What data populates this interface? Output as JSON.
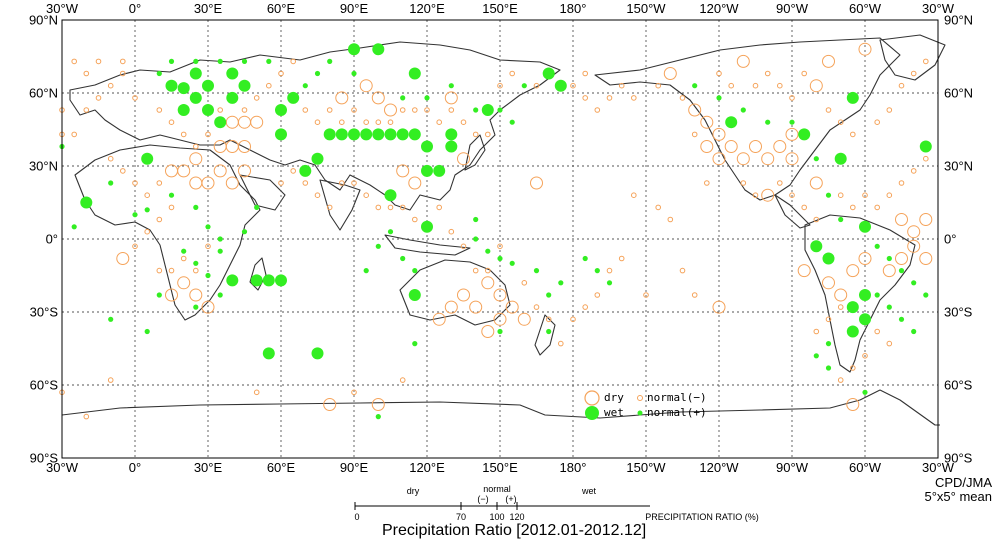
{
  "title": "Precipitation Ratio [2012.01-2012.12]",
  "credit": {
    "line1": "CPD/JMA",
    "line2": "5°x5° mean"
  },
  "colors": {
    "dry": "#f5a35a",
    "wet": "#33ee22",
    "land": "#333333",
    "grid": "#555555"
  },
  "longitude_labels": [
    "30°W",
    "0°",
    "30°E",
    "60°E",
    "90°E",
    "120°E",
    "150°E",
    "180°",
    "150°W",
    "120°W",
    "90°W",
    "60°W",
    "30°W"
  ],
  "latitude_labels": [
    "90°N",
    "60°N",
    "30°N",
    "0°",
    "30°S",
    "60°S",
    "90°S"
  ],
  "legend": {
    "dry": "dry",
    "wet": "wet",
    "normal_minus": "normal(−)",
    "normal_plus": "normal(+)"
  },
  "scale": {
    "dry": "dry",
    "normal": "normal",
    "minus": "(−)",
    "plus": "(+)",
    "wet": "wet",
    "ticks": [
      "0",
      "70",
      "100",
      "120"
    ],
    "label": "PRECIPITATION RATIO  (%)"
  },
  "stations": {
    "wet_large": [
      [
        -35,
        38
      ],
      [
        -20,
        15
      ],
      [
        5,
        33
      ],
      [
        15,
        63
      ],
      [
        20,
        62
      ],
      [
        20,
        53
      ],
      [
        25,
        68
      ],
      [
        25,
        58
      ],
      [
        30,
        63
      ],
      [
        30,
        53
      ],
      [
        35,
        48
      ],
      [
        40,
        58
      ],
      [
        45,
        63
      ],
      [
        40,
        68
      ],
      [
        60,
        43
      ],
      [
        60,
        53
      ],
      [
        65,
        58
      ],
      [
        70,
        28
      ],
      [
        75,
        33
      ],
      [
        80,
        43
      ],
      [
        85,
        43
      ],
      [
        90,
        43
      ],
      [
        95,
        43
      ],
      [
        100,
        43
      ],
      [
        105,
        43
      ],
      [
        110,
        43
      ],
      [
        115,
        43
      ],
      [
        120,
        38
      ],
      [
        90,
        78
      ],
      [
        100,
        78
      ],
      [
        115,
        68
      ],
      [
        120,
        28
      ],
      [
        125,
        28
      ],
      [
        130,
        43
      ],
      [
        130,
        38
      ],
      [
        145,
        53
      ],
      [
        170,
        68
      ],
      [
        175,
        63
      ],
      [
        50,
        -17
      ],
      [
        55,
        -17
      ],
      [
        60,
        -17
      ],
      [
        40,
        -17
      ],
      [
        115,
        -23
      ],
      [
        55,
        -47
      ],
      [
        75,
        -47
      ],
      [
        105,
        18
      ],
      [
        120,
        5
      ],
      [
        -60,
        5
      ],
      [
        -80,
        -3
      ],
      [
        -75,
        -8
      ],
      [
        -65,
        -38
      ],
      [
        -60,
        -33
      ],
      [
        -65,
        -28
      ],
      [
        -60,
        -23
      ],
      [
        -115,
        48
      ],
      [
        -70,
        33
      ],
      [
        -65,
        58
      ],
      [
        -85,
        43
      ]
    ],
    "wet_small": [
      [
        -25,
        5
      ],
      [
        -10,
        23
      ],
      [
        0,
        10
      ],
      [
        5,
        12
      ],
      [
        15,
        18
      ],
      [
        25,
        13
      ],
      [
        30,
        5
      ],
      [
        35,
        0
      ],
      [
        35,
        -5
      ],
      [
        45,
        3
      ],
      [
        50,
        13
      ],
      [
        20,
        -5
      ],
      [
        25,
        -10
      ],
      [
        30,
        -15
      ],
      [
        35,
        -23
      ],
      [
        25,
        -28
      ],
      [
        10,
        68
      ],
      [
        15,
        73
      ],
      [
        25,
        73
      ],
      [
        35,
        73
      ],
      [
        45,
        73
      ],
      [
        55,
        73
      ],
      [
        70,
        63
      ],
      [
        75,
        68
      ],
      [
        80,
        73
      ],
      [
        90,
        68
      ],
      [
        110,
        58
      ],
      [
        120,
        58
      ],
      [
        130,
        63
      ],
      [
        140,
        53
      ],
      [
        150,
        53
      ],
      [
        160,
        63
      ],
      [
        155,
        48
      ],
      [
        140,
        8
      ],
      [
        140,
        0
      ],
      [
        145,
        -5
      ],
      [
        150,
        -8
      ],
      [
        155,
        -10
      ],
      [
        165,
        -13
      ],
      [
        175,
        -18
      ],
      [
        170,
        -23
      ],
      [
        -175,
        -8
      ],
      [
        -170,
        -13
      ],
      [
        -165,
        -18
      ],
      [
        115,
        -43
      ],
      [
        150,
        -38
      ],
      [
        170,
        -38
      ],
      [
        95,
        -13
      ],
      [
        100,
        -3
      ],
      [
        105,
        3
      ],
      [
        110,
        -8
      ],
      [
        115,
        -13
      ],
      [
        -130,
        63
      ],
      [
        -120,
        58
      ],
      [
        -110,
        53
      ],
      [
        -100,
        48
      ],
      [
        -90,
        48
      ],
      [
        -80,
        33
      ],
      [
        -75,
        18
      ],
      [
        -70,
        8
      ],
      [
        -55,
        -3
      ],
      [
        -50,
        -8
      ],
      [
        -45,
        -13
      ],
      [
        -40,
        -18
      ],
      [
        -55,
        -23
      ],
      [
        -50,
        -28
      ],
      [
        -45,
        -33
      ],
      [
        -40,
        -38
      ],
      [
        -75,
        -43
      ],
      [
        -80,
        -48
      ],
      [
        -75,
        -53
      ],
      [
        -60,
        -63
      ],
      [
        -30,
        38
      ],
      [
        100,
        -73
      ],
      [
        -35,
        -23
      ],
      [
        10,
        -23
      ],
      [
        -10,
        -33
      ],
      [
        5,
        -38
      ]
    ],
    "dry_large": [
      [
        15,
        28
      ],
      [
        20,
        28
      ],
      [
        25,
        23
      ],
      [
        30,
        23
      ],
      [
        35,
        28
      ],
      [
        40,
        23
      ],
      [
        45,
        28
      ],
      [
        25,
        33
      ],
      [
        35,
        38
      ],
      [
        40,
        38
      ],
      [
        45,
        38
      ],
      [
        40,
        48
      ],
      [
        45,
        48
      ],
      [
        50,
        48
      ],
      [
        85,
        58
      ],
      [
        95,
        63
      ],
      [
        100,
        58
      ],
      [
        105,
        53
      ],
      [
        130,
        58
      ],
      [
        135,
        33
      ],
      [
        110,
        28
      ],
      [
        115,
        23
      ],
      [
        -125,
        38
      ],
      [
        -120,
        33
      ],
      [
        -115,
        38
      ],
      [
        -110,
        33
      ],
      [
        -105,
        38
      ],
      [
        -100,
        33
      ],
      [
        -95,
        38
      ],
      [
        -90,
        43
      ],
      [
        -90,
        33
      ],
      [
        -80,
        23
      ],
      [
        -100,
        18
      ],
      [
        -130,
        53
      ],
      [
        -125,
        48
      ],
      [
        -120,
        43
      ],
      [
        -140,
        68
      ],
      [
        -110,
        73
      ],
      [
        -80,
        63
      ],
      [
        -75,
        73
      ],
      [
        -60,
        78
      ],
      [
        150,
        -23
      ],
      [
        140,
        -28
      ],
      [
        145,
        -18
      ],
      [
        135,
        -23
      ],
      [
        130,
        -28
      ],
      [
        125,
        -33
      ],
      [
        155,
        -28
      ],
      [
        160,
        -33
      ],
      [
        150,
        -33
      ],
      [
        145,
        -38
      ],
      [
        165,
        23
      ],
      [
        -40,
        -3
      ],
      [
        -40,
        3
      ],
      [
        -45,
        8
      ],
      [
        -45,
        -8
      ],
      [
        -50,
        -13
      ],
      [
        -35,
        -8
      ],
      [
        -120,
        -28
      ],
      [
        -65,
        -68
      ],
      [
        -35,
        8
      ],
      [
        -75,
        -18
      ],
      [
        -70,
        -23
      ],
      [
        -65,
        -13
      ],
      [
        -60,
        -8
      ],
      [
        -85,
        -13
      ],
      [
        15,
        -23
      ],
      [
        20,
        -18
      ],
      [
        25,
        -23
      ],
      [
        30,
        -28
      ],
      [
        -5,
        -8
      ],
      [
        80,
        -68
      ],
      [
        100,
        -68
      ]
    ],
    "dry_small": [
      [
        -25,
        43
      ],
      [
        -20,
        53
      ],
      [
        -15,
        58
      ],
      [
        -10,
        63
      ],
      [
        -5,
        68
      ],
      [
        0,
        58
      ],
      [
        10,
        53
      ],
      [
        15,
        48
      ],
      [
        20,
        43
      ],
      [
        25,
        38
      ],
      [
        30,
        43
      ],
      [
        35,
        53
      ],
      [
        45,
        53
      ],
      [
        50,
        58
      ],
      [
        55,
        63
      ],
      [
        60,
        68
      ],
      [
        65,
        73
      ],
      [
        70,
        53
      ],
      [
        75,
        48
      ],
      [
        80,
        53
      ],
      [
        85,
        48
      ],
      [
        90,
        53
      ],
      [
        95,
        48
      ],
      [
        100,
        48
      ],
      [
        105,
        48
      ],
      [
        110,
        53
      ],
      [
        115,
        53
      ],
      [
        120,
        53
      ],
      [
        125,
        48
      ],
      [
        130,
        53
      ],
      [
        135,
        48
      ],
      [
        140,
        43
      ],
      [
        145,
        43
      ],
      [
        150,
        63
      ],
      [
        155,
        68
      ],
      [
        165,
        63
      ],
      [
        180,
        63
      ],
      [
        185,
        68
      ],
      [
        -10,
        33
      ],
      [
        -5,
        28
      ],
      [
        0,
        23
      ],
      [
        5,
        18
      ],
      [
        10,
        23
      ],
      [
        15,
        13
      ],
      [
        10,
        8
      ],
      [
        5,
        3
      ],
      [
        0,
        -3
      ],
      [
        10,
        -13
      ],
      [
        15,
        -13
      ],
      [
        20,
        -8
      ],
      [
        25,
        -13
      ],
      [
        30,
        -3
      ],
      [
        60,
        23
      ],
      [
        65,
        28
      ],
      [
        70,
        23
      ],
      [
        75,
        18
      ],
      [
        80,
        13
      ],
      [
        85,
        23
      ],
      [
        90,
        23
      ],
      [
        95,
        18
      ],
      [
        100,
        13
      ],
      [
        105,
        13
      ],
      [
        110,
        13
      ],
      [
        115,
        8
      ],
      [
        125,
        13
      ],
      [
        130,
        3
      ],
      [
        135,
        -3
      ],
      [
        140,
        -13
      ],
      [
        145,
        -13
      ],
      [
        150,
        -3
      ],
      [
        160,
        -18
      ],
      [
        165,
        -28
      ],
      [
        170,
        -33
      ],
      [
        175,
        -43
      ],
      [
        -180,
        -33
      ],
      [
        -175,
        -28
      ],
      [
        -170,
        -23
      ],
      [
        -165,
        -13
      ],
      [
        -160,
        -8
      ],
      [
        -155,
        18
      ],
      [
        -150,
        -23
      ],
      [
        -145,
        13
      ],
      [
        -140,
        8
      ],
      [
        -135,
        -13
      ],
      [
        -130,
        -23
      ],
      [
        -125,
        23
      ],
      [
        -110,
        23
      ],
      [
        -105,
        18
      ],
      [
        -95,
        23
      ],
      [
        -90,
        18
      ],
      [
        -85,
        13
      ],
      [
        -80,
        8
      ],
      [
        -70,
        18
      ],
      [
        -65,
        13
      ],
      [
        -60,
        18
      ],
      [
        -55,
        13
      ],
      [
        -50,
        18
      ],
      [
        -45,
        23
      ],
      [
        -40,
        28
      ],
      [
        -35,
        33
      ],
      [
        -30,
        43
      ],
      [
        -30,
        53
      ],
      [
        -30,
        -63
      ],
      [
        -20,
        -73
      ],
      [
        -10,
        -58
      ],
      [
        50,
        -63
      ],
      [
        90,
        -63
      ],
      [
        110,
        -58
      ],
      [
        -80,
        -38
      ],
      [
        -75,
        -33
      ],
      [
        -70,
        -28
      ],
      [
        -55,
        -38
      ],
      [
        -50,
        -43
      ],
      [
        -60,
        -48
      ],
      [
        -65,
        -53
      ],
      [
        -70,
        -58
      ],
      [
        -120,
        68
      ],
      [
        -115,
        63
      ],
      [
        -105,
        63
      ],
      [
        -100,
        68
      ],
      [
        -95,
        63
      ],
      [
        -90,
        58
      ],
      [
        -85,
        68
      ],
      [
        -75,
        53
      ],
      [
        -70,
        48
      ],
      [
        -65,
        43
      ],
      [
        -55,
        48
      ],
      [
        -50,
        53
      ],
      [
        -45,
        63
      ],
      [
        -40,
        68
      ],
      [
        -35,
        73
      ],
      [
        -25,
        73
      ],
      [
        -20,
        68
      ],
      [
        -15,
        73
      ],
      [
        -5,
        73
      ],
      [
        -130,
        43
      ],
      [
        -135,
        58
      ],
      [
        -145,
        63
      ],
      [
        -155,
        58
      ],
      [
        -160,
        63
      ],
      [
        -165,
        58
      ],
      [
        -170,
        53
      ],
      [
        -175,
        58
      ]
    ]
  }
}
